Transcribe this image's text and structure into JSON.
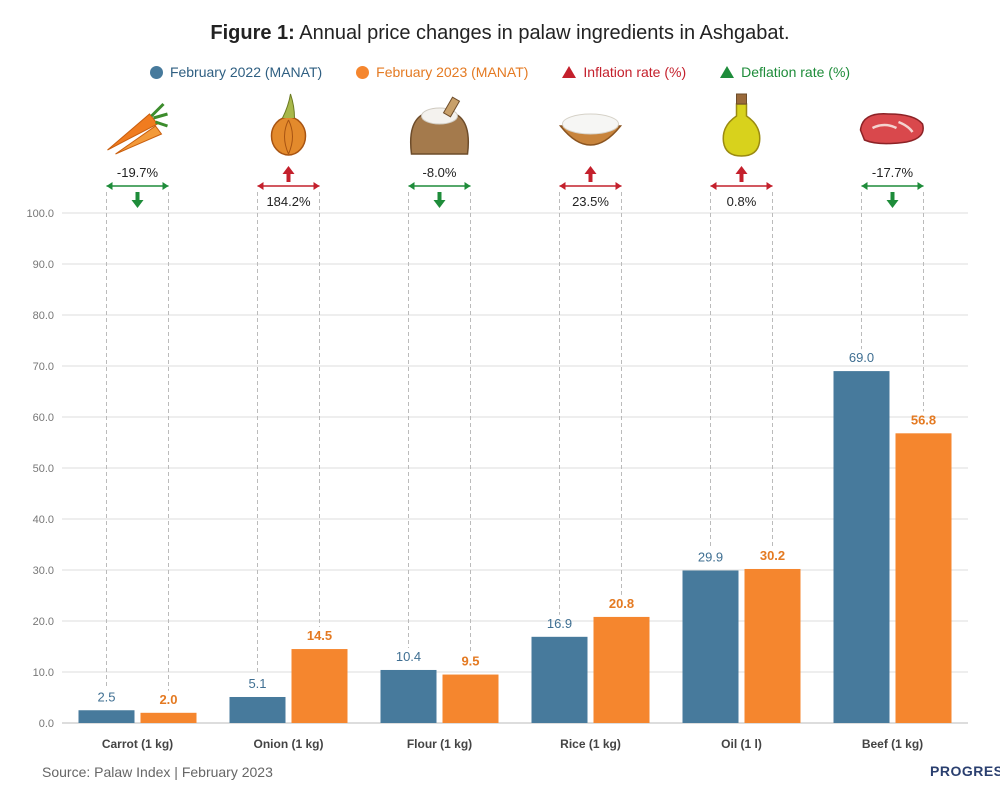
{
  "title_bold": "Figure 1:",
  "title_rest": " Annual price changes in palaw ingredients in Ashgabat.",
  "legend": {
    "s2022": "February 2022 (MANAT)",
    "s2023": "February 2023 (MANAT)",
    "inflation": "Inflation rate (%)",
    "deflation": "Deflation rate (%)"
  },
  "colors": {
    "s2022": "#477a9c",
    "s2023": "#f5862e",
    "inflation": "#c4202c",
    "deflation": "#1e8c3a",
    "grid": "#dcdcdc",
    "label2022": "#3f6f92",
    "label2023": "#e47a22"
  },
  "chart_data": {
    "type": "bar",
    "title": "Figure 1: Annual price changes in palaw ingredients in Ashgabat.",
    "categories": [
      "Carrot (1 kg)",
      "Onion (1 kg)",
      "Flour (1 kg)",
      "Rice (1 kg)",
      "Oil (1 l)",
      "Beef (1 kg)"
    ],
    "series": [
      {
        "name": "February 2022 (MANAT)",
        "values": [
          2.5,
          5.1,
          10.4,
          16.9,
          29.9,
          69.0
        ]
      },
      {
        "name": "February 2023 (MANAT)",
        "values": [
          2.0,
          14.5,
          9.5,
          20.8,
          30.2,
          56.8
        ]
      }
    ],
    "rates": [
      {
        "label": "-19.7%",
        "kind": "deflation"
      },
      {
        "label": "184.2%",
        "kind": "inflation"
      },
      {
        "label": "-8.0%",
        "kind": "deflation"
      },
      {
        "label": "23.5%",
        "kind": "inflation"
      },
      {
        "label": "0.8%",
        "kind": "inflation"
      },
      {
        "label": "-17.7%",
        "kind": "deflation"
      }
    ],
    "icons": [
      "carrot-icon",
      "onion-icon",
      "flour-sack-icon",
      "rice-bowl-icon",
      "oil-bottle-icon",
      "beef-icon"
    ],
    "ylim": [
      0,
      100
    ],
    "yticks": [
      "0.0",
      "10.0",
      "20.0",
      "30.0",
      "40.0",
      "50.0",
      "60.0",
      "70.0",
      "80.0",
      "90.0",
      "100.0"
    ],
    "grid": true,
    "legend_position": "top"
  },
  "footer": "Source: Palaw Index | February 2023",
  "brand": "PROGRES"
}
